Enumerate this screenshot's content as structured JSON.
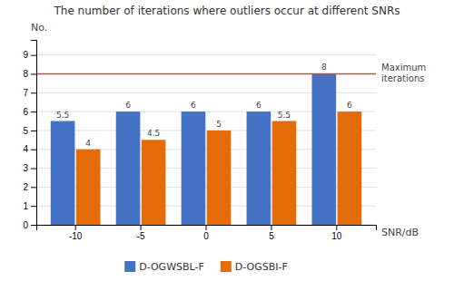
{
  "chart_data": {
    "type": "bar",
    "title": "The number of iterations where outliers occur at different SNRs",
    "xlabel": "SNR/dB",
    "ylabel": "No.",
    "categories": [
      "-10",
      "-5",
      "0",
      "5",
      "10"
    ],
    "series": [
      {
        "name": "D-OGWSBL-F",
        "color": "#4472C4",
        "values": [
          5.5,
          6,
          6,
          6,
          8
        ]
      },
      {
        "name": "D-OGSBI-F",
        "color": "#E36C09",
        "values": [
          4,
          4.5,
          5,
          5.5,
          6
        ]
      }
    ],
    "reference_line": {
      "value": 8,
      "label": "Maximum\niterations",
      "color": "#C0504D"
    },
    "ylim": [
      0,
      9.8
    ],
    "yticks": [
      0,
      1,
      2,
      3,
      4,
      5,
      6,
      7,
      8,
      9
    ],
    "grid": true,
    "legend": "bottom",
    "data_labels": true
  }
}
